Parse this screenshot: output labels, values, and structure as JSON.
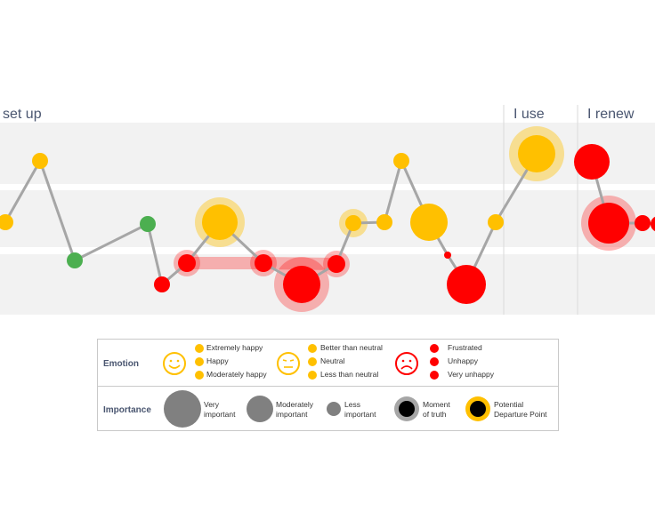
{
  "phases": [
    {
      "label": "set up"
    },
    {
      "label": "I use"
    },
    {
      "label": "I renew"
    }
  ],
  "colors": {
    "happy": "#ffc000",
    "neutral": "#ffc000",
    "unhappy": "#ff0000",
    "positive": "#4caf50",
    "line": "#a6a6a6",
    "band": "#f2f2f2"
  },
  "legend": {
    "emotion_title": "Emotion",
    "importance_title": "Importance",
    "happy_items": [
      "Extremely happy",
      "Happy",
      "Moderately happy"
    ],
    "neutral_items": [
      "Better than neutral",
      "Neutral",
      "Less than neutral"
    ],
    "unhappy_items": [
      "Frustrated",
      "Unhappy",
      "Very unhappy"
    ],
    "very_important": [
      "Very",
      "important"
    ],
    "moderately_important": [
      "Moderately",
      "important"
    ],
    "less_important": [
      "Less",
      "important"
    ],
    "moment_of_truth": [
      "Moment",
      "of truth"
    ],
    "departure_point": [
      "Potential",
      "Departure Point"
    ]
  }
}
